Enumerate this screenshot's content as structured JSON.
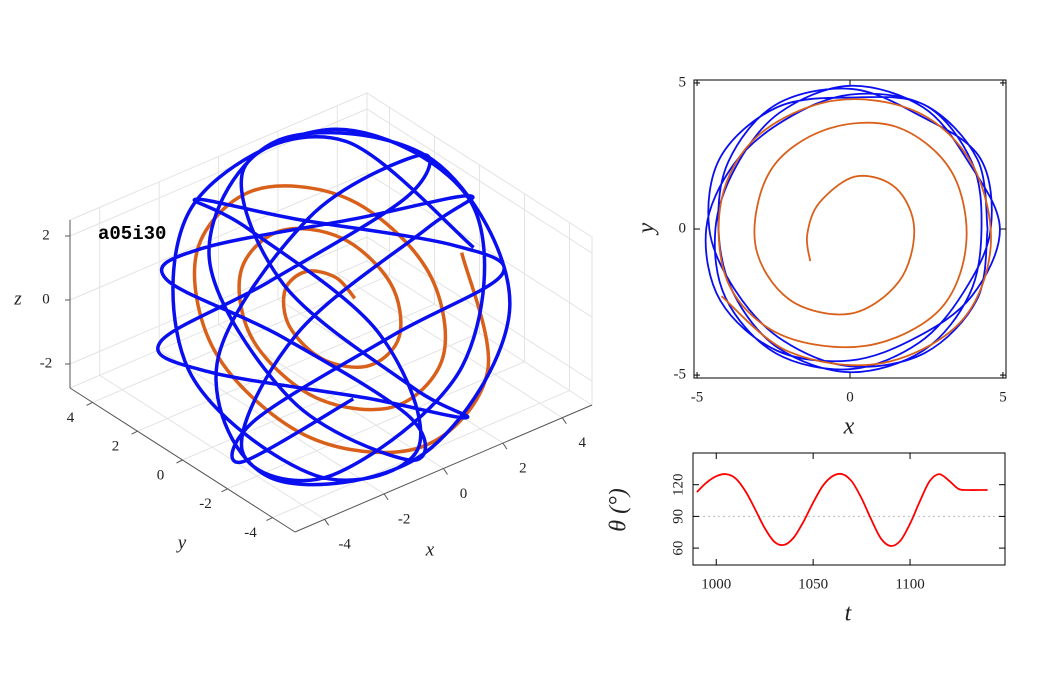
{
  "chart_data": [
    {
      "type": "line3d",
      "annotation": "a05i30",
      "xlabel": "x",
      "ylabel": "y",
      "zlabel": "z",
      "xlim": [
        -5,
        5
      ],
      "ylim": [
        -5,
        5
      ],
      "zlim": [
        -2.75,
        2.5
      ],
      "xticks": [
        -4,
        -2,
        0,
        2,
        4
      ],
      "yticks": [
        -4,
        -2,
        0,
        2,
        4
      ],
      "zticks": [
        -2,
        0,
        2
      ],
      "grid": true,
      "series": [
        {
          "color": "#d9601a",
          "x": [
            0.8,
            0.67,
            0,
            -0.88,
            -1.4,
            -1.1,
            0,
            1.31,
            2.0,
            1.52,
            0,
            -1.73,
            -2.6,
            -1.94,
            0,
            2.16,
            3.2,
            2.37,
            0,
            -2.58,
            -3.8,
            -2.79,
            0,
            3.0,
            4.4
          ],
          "y": [
            0,
            0.67,
            1.1,
            0.88,
            0,
            -1.1,
            -1.7,
            -1.31,
            0,
            1.52,
            2.3,
            1.73,
            0,
            -1.94,
            -2.9,
            -2.16,
            0,
            2.37,
            3.5,
            2.58,
            0,
            -2.79,
            -4.1,
            -3.0,
            0
          ],
          "z": [
            0,
            0.4,
            0.66,
            0.53,
            0,
            -0.66,
            -1.02,
            -0.79,
            0,
            0.91,
            1.38,
            1.04,
            0,
            -1.16,
            -1.74,
            -1.3,
            0,
            1.42,
            2.1,
            1.55,
            0,
            -1.68,
            -2.46,
            -1.8,
            0
          ]
        },
        {
          "color": "#0a0ff0",
          "x": [
            4.8,
            2.61,
            -1.54,
            -3.17,
            -0.84,
            2.26,
            2.08,
            -1.51,
            -4.51,
            -3.39,
            0.82,
            3.69,
            2.4,
            -1.08,
            -2.36,
            0.23,
            3.68,
            3.77,
            0,
            -3.77,
            -3.68,
            -0.23,
            2.36,
            1.08,
            -2.4,
            -3.69,
            -0.82,
            3.39,
            4.51,
            1.51,
            -2.08,
            -2.26,
            0.84,
            3.17,
            1.54,
            -2.61,
            -4.8,
            -2.61,
            1.54,
            3.17,
            0.84,
            -2.26,
            -2.08,
            1.51,
            4.51,
            3.39,
            -0.82,
            -3.69,
            -2.4
          ],
          "y": [
            0,
            2.76,
            1.84,
            -2.09,
            -4.73,
            -3.04,
            1.2,
            3.48,
            1.64,
            -1.7,
            -2.26,
            0.88,
            4.16,
            3.64,
            -0.42,
            -3.79,
            -3.09,
            0.44,
            2.4,
            0.44,
            -3.09,
            -3.79,
            -0.42,
            3.64,
            4.16,
            0.88,
            -2.26,
            -1.7,
            1.64,
            3.48,
            1.2,
            -3.04,
            -4.73,
            -2.09,
            1.84,
            2.76,
            0,
            -2.76,
            -1.84,
            2.09,
            4.73,
            3.04,
            -1.2,
            -3.48,
            -1.64,
            1.7,
            2.26,
            -0.88,
            -4.16
          ],
          "z": [
            0,
            2.94,
            4.16,
            2.94,
            0,
            -2.94,
            -4.16,
            -2.94,
            0,
            2.94,
            4.16,
            2.94,
            0,
            -2.94,
            -4.16,
            -2.94,
            0,
            2.94,
            4.16,
            2.94,
            0,
            -2.94,
            -4.16,
            -2.94,
            0,
            2.94,
            4.16,
            2.94,
            0,
            -2.94,
            -4.16,
            -2.94,
            0,
            2.94,
            4.16,
            2.94,
            0,
            -2.94,
            -4.16,
            -2.94,
            0,
            2.94,
            4.16,
            2.94,
            0,
            -2.94,
            -4.16,
            -2.94,
            0
          ]
        }
      ]
    },
    {
      "type": "line",
      "xlabel": "x",
      "ylabel": "y",
      "xlim": [
        -5.1,
        5.1
      ],
      "ylim": [
        -5.1,
        5.1
      ],
      "xticks": [
        -5,
        0,
        5
      ],
      "yticks": [
        -5,
        0,
        5
      ],
      "series": [
        {
          "color": "#0a0ff0",
          "x": [
            4.5,
            4.16,
            2.45,
            0,
            -2.15,
            -3.81,
            -4.7,
            -4.24,
            -2.4,
            0,
            2.15,
            3.98,
            4.9,
            3.9,
            2.4,
            0,
            -2.3,
            -3.72,
            -4.4,
            -4.07,
            -2.45,
            0,
            2.25,
            3.72,
            4.6,
            4.24,
            2.25,
            0,
            -2.45,
            -3.98,
            -4.3,
            -3.81,
            -2.35,
            0,
            2.4,
            3.9,
            4.3,
            3.98,
            2.45,
            0,
            -2.4,
            -4.24,
            -4.6,
            -3.72,
            -2.2,
            0,
            2.45,
            4.16,
            4.5
          ],
          "values": [
            0,
            2.4,
            4.24,
            4.6,
            3.72,
            2.2,
            0,
            -2.45,
            -4.16,
            -4.5,
            -3.72,
            -2.3,
            0,
            2.25,
            4.16,
            4.9,
            3.98,
            2.15,
            0,
            -2.35,
            -4.24,
            -4.8,
            -3.9,
            -2.15,
            0,
            2.45,
            3.9,
            4.8,
            4.24,
            2.3,
            0,
            -2.2,
            -4.07,
            -4.9,
            -4.16,
            -2.25,
            0,
            2.3,
            4.24,
            4.5,
            4.16,
            2.45,
            0,
            -2.15,
            -3.81,
            -4.7,
            -4.24,
            -2.4,
            0
          ]
        },
        {
          "color": "#d9601a",
          "x": [
            -1.3,
            -1.4,
            -1.0,
            0.2,
            1.5,
            2.1,
            1.6,
            0,
            -2.0,
            -3.1,
            -2.6,
            -0.8,
            1.5,
            3.3,
            3.8,
            2.9,
            0.5,
            -2.3,
            -4.0,
            -4.2,
            -3.0,
            -0.5,
            2.2,
            4.0,
            4.6,
            3.6,
            1.0,
            -2.0,
            -4.2
          ],
          "values": [
            -1.1,
            -0.2,
            0.9,
            1.8,
            1.4,
            0,
            -1.8,
            -2.9,
            -2.4,
            -0.5,
            2.0,
            3.4,
            3.5,
            2.0,
            -0.5,
            -2.8,
            -4.0,
            -3.6,
            -1.8,
            1.0,
            3.2,
            4.4,
            4.0,
            2.2,
            -0.6,
            -3.2,
            -4.6,
            -4.2,
            -2.3
          ]
        }
      ]
    },
    {
      "type": "line",
      "xlabel": "t",
      "ylabel": "θ (°)",
      "xlim": [
        988,
        1149
      ],
      "ylim": [
        44,
        150
      ],
      "xticks": [
        1000,
        1050,
        1100
      ],
      "yticks": [
        60,
        90,
        120
      ],
      "hline": 90,
      "x": [
        990,
        995,
        1000,
        1005,
        1010,
        1015,
        1020,
        1025,
        1030,
        1035,
        1040,
        1045,
        1050,
        1055,
        1060,
        1065,
        1070,
        1075,
        1080,
        1085,
        1090,
        1095,
        1100,
        1105,
        1110,
        1115,
        1120,
        1125,
        1130,
        1135,
        1140
      ],
      "series": [
        {
          "color": "#ff0000",
          "values": [
            113,
            122,
            128,
            130,
            126,
            114,
            97,
            79,
            66,
            63,
            70,
            85,
            103,
            119,
            128,
            130,
            123,
            107,
            87,
            69,
            62,
            67,
            83,
            104,
            123,
            130,
            124,
            116,
            115,
            115,
            115
          ]
        }
      ]
    }
  ]
}
